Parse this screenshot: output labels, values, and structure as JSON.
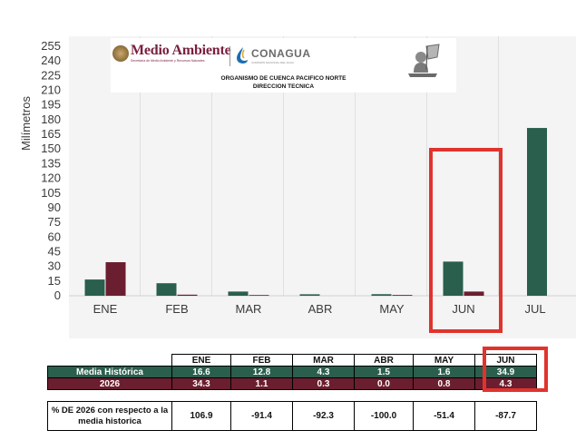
{
  "chart_data": {
    "type": "bar",
    "title": "",
    "xlabel": "",
    "ylabel": "Milímetros",
    "ylim": [
      0,
      255
    ],
    "yticks": [
      0,
      15,
      30,
      45,
      60,
      75,
      90,
      105,
      120,
      135,
      150,
      165,
      180,
      195,
      210,
      225,
      240,
      255
    ],
    "grid": "vertical",
    "categories": [
      "ENE",
      "FEB",
      "MAR",
      "ABR",
      "MAY",
      "JUN",
      "JUL"
    ],
    "series": [
      {
        "name": "Media Histórica",
        "color": "#2a5e4d",
        "values": [
          16.6,
          12.8,
          4.3,
          1.5,
          1.6,
          34.9,
          171.5
        ]
      },
      {
        "name": "2026",
        "color": "#6b1e2f",
        "values": [
          34.3,
          1.1,
          0.3,
          0.0,
          0.8,
          4.3,
          null
        ]
      }
    ],
    "highlight": {
      "category": "JUN",
      "color": "#e0332d"
    }
  },
  "logo": {
    "brand_main": "Medio Ambiente",
    "brand_sub": "Secretaría de Medio Ambiente y Recursos Naturales",
    "conagua": "CONAGUA",
    "conagua_sub": "COMISIÓN NACIONAL DEL AGUA",
    "org_name": "ORGANISMO DE CUENCA PACIFICO NORTE",
    "org_dept": "DIRECCION TECNICA"
  },
  "table": {
    "headers": [
      "ENE",
      "FEB",
      "MAR",
      "ABR",
      "MAY",
      "JUN"
    ],
    "rows": [
      {
        "label": "Media Histórica",
        "values": [
          "16.6",
          "12.8",
          "4.3",
          "1.5",
          "1.6",
          "34.9"
        ]
      },
      {
        "label": "2026",
        "values": [
          "34.3",
          "1.1",
          "0.3",
          "0.0",
          "0.8",
          "4.3"
        ]
      }
    ],
    "pct_label": "% DE 2026 con respecto a la media historica",
    "pct_values": [
      "106.9",
      "-91.4",
      "-92.3",
      "-100.0",
      "-51.4",
      "-87.7"
    ]
  }
}
